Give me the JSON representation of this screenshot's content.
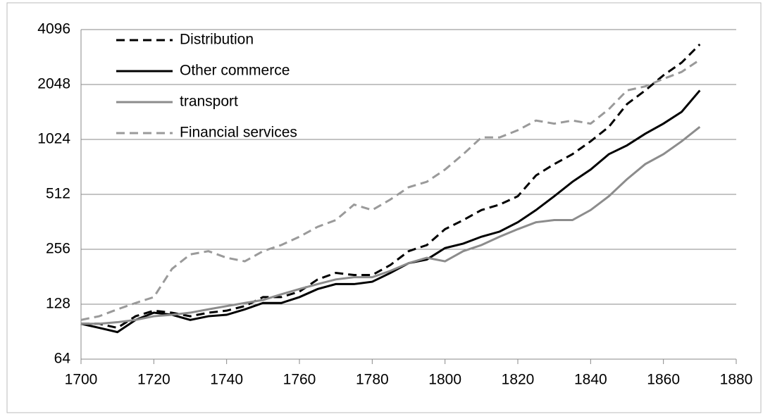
{
  "chart_data": {
    "type": "line",
    "x": [
      1700,
      1705,
      1710,
      1715,
      1720,
      1725,
      1730,
      1735,
      1740,
      1745,
      1750,
      1755,
      1760,
      1765,
      1770,
      1775,
      1780,
      1785,
      1790,
      1795,
      1800,
      1805,
      1810,
      1815,
      1820,
      1825,
      1830,
      1835,
      1840,
      1845,
      1850,
      1855,
      1860,
      1865,
      1870
    ],
    "series": [
      {
        "name": "Distribution",
        "color": "#000000",
        "dash": true,
        "values": [
          100,
          100,
          95,
          110,
          118,
          115,
          110,
          115,
          118,
          125,
          140,
          140,
          150,
          175,
          190,
          185,
          185,
          210,
          250,
          270,
          330,
          370,
          420,
          450,
          500,
          650,
          750,
          850,
          1000,
          1200,
          1600,
          1900,
          2300,
          2700,
          3400
        ]
      },
      {
        "name": "Other commerce",
        "color": "#000000",
        "dash": false,
        "values": [
          100,
          95,
          90,
          105,
          115,
          112,
          105,
          110,
          112,
          120,
          130,
          130,
          140,
          155,
          165,
          165,
          170,
          190,
          215,
          225,
          260,
          275,
          300,
          320,
          360,
          420,
          500,
          600,
          700,
          850,
          950,
          1100,
          1250,
          1450,
          1900
        ]
      },
      {
        "name": "transport",
        "color": "#8c8c8c",
        "dash": false,
        "values": [
          100,
          100,
          102,
          105,
          110,
          112,
          115,
          120,
          125,
          130,
          135,
          145,
          155,
          165,
          175,
          180,
          180,
          195,
          215,
          230,
          220,
          250,
          270,
          300,
          330,
          360,
          370,
          370,
          420,
          500,
          620,
          750,
          850,
          1000,
          1200
        ]
      },
      {
        "name": "Financial services",
        "color": "#9a9a9a",
        "dash": true,
        "values": [
          105,
          110,
          120,
          130,
          140,
          200,
          240,
          250,
          230,
          220,
          250,
          270,
          300,
          340,
          370,
          450,
          420,
          480,
          560,
          600,
          700,
          850,
          1050,
          1050,
          1150,
          1300,
          1250,
          1300,
          1250,
          1500,
          1900,
          2000,
          2200,
          2400,
          2800
        ]
      }
    ],
    "xlim": [
      1700,
      1880
    ],
    "xticks": [
      1700,
      1720,
      1740,
      1760,
      1780,
      1800,
      1820,
      1840,
      1860,
      1880
    ],
    "ylim": [
      64,
      4096
    ],
    "yticks": [
      64,
      128,
      256,
      512,
      1024,
      2048,
      4096
    ],
    "log_base": 2,
    "grid": true,
    "legend": "top-left"
  }
}
